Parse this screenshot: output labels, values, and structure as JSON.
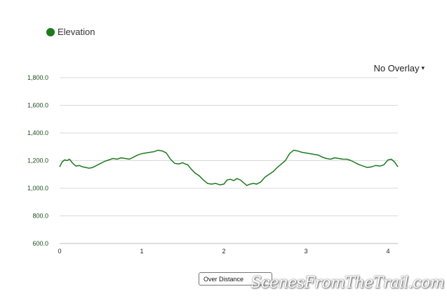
{
  "legend": {
    "label": "Elevation",
    "color": "#1e7a1e"
  },
  "overlay": {
    "label": "No Overlay",
    "arrow": "▾"
  },
  "select": {
    "value": "Over Distance",
    "chevron": "⌄"
  },
  "watermark": {
    "text": "ScenesFromTheTrail.com"
  },
  "chart_data": {
    "type": "line",
    "title": "",
    "xlabel": "",
    "ylabel": "",
    "xlim": [
      0,
      4.12
    ],
    "ylim": [
      600,
      1800
    ],
    "xticks": [
      0,
      1,
      2,
      3,
      4
    ],
    "xtick_labels": [
      "0",
      "1",
      "2",
      "3",
      "4"
    ],
    "yticks": [
      600,
      800,
      1000,
      1200,
      1400,
      1600,
      1800
    ],
    "ytick_labels": [
      "600.0",
      "800.0",
      "1,000.0",
      "1,200.0",
      "1,400.0",
      "1,600.0",
      "1,800.0"
    ],
    "grid": "horizontal",
    "legend_position": "top-left",
    "series": [
      {
        "name": "Elevation",
        "color": "#1e7a1e",
        "x": [
          0,
          0.03,
          0.06,
          0.09,
          0.12,
          0.16,
          0.2,
          0.24,
          0.28,
          0.32,
          0.36,
          0.4,
          0.45,
          0.5,
          0.55,
          0.6,
          0.65,
          0.7,
          0.75,
          0.8,
          0.85,
          0.9,
          0.95,
          1.0,
          1.05,
          1.1,
          1.15,
          1.2,
          1.25,
          1.3,
          1.35,
          1.4,
          1.45,
          1.5,
          1.53,
          1.56,
          1.6,
          1.65,
          1.7,
          1.75,
          1.8,
          1.85,
          1.9,
          1.95,
          2.0,
          2.04,
          2.08,
          2.12,
          2.16,
          2.2,
          2.24,
          2.28,
          2.32,
          2.36,
          2.4,
          2.45,
          2.5,
          2.55,
          2.6,
          2.65,
          2.7,
          2.75,
          2.8,
          2.85,
          2.9,
          2.95,
          3.0,
          3.05,
          3.1,
          3.15,
          3.2,
          3.25,
          3.3,
          3.35,
          3.4,
          3.45,
          3.5,
          3.55,
          3.6,
          3.65,
          3.7,
          3.75,
          3.8,
          3.85,
          3.9,
          3.95,
          4.0,
          4.04,
          4.08,
          4.12
        ],
        "y": [
          1155,
          1190,
          1205,
          1200,
          1210,
          1180,
          1160,
          1165,
          1155,
          1150,
          1145,
          1150,
          1165,
          1180,
          1195,
          1205,
          1215,
          1210,
          1220,
          1215,
          1210,
          1225,
          1240,
          1250,
          1255,
          1260,
          1265,
          1275,
          1270,
          1255,
          1210,
          1180,
          1175,
          1185,
          1175,
          1170,
          1140,
          1110,
          1090,
          1060,
          1035,
          1030,
          1035,
          1025,
          1030,
          1060,
          1065,
          1055,
          1070,
          1060,
          1040,
          1020,
          1030,
          1035,
          1030,
          1045,
          1080,
          1100,
          1120,
          1150,
          1175,
          1200,
          1250,
          1275,
          1270,
          1260,
          1255,
          1250,
          1245,
          1240,
          1225,
          1215,
          1210,
          1220,
          1215,
          1210,
          1210,
          1200,
          1185,
          1170,
          1160,
          1150,
          1155,
          1165,
          1160,
          1170,
          1205,
          1210,
          1190,
          1155
        ]
      }
    ]
  }
}
